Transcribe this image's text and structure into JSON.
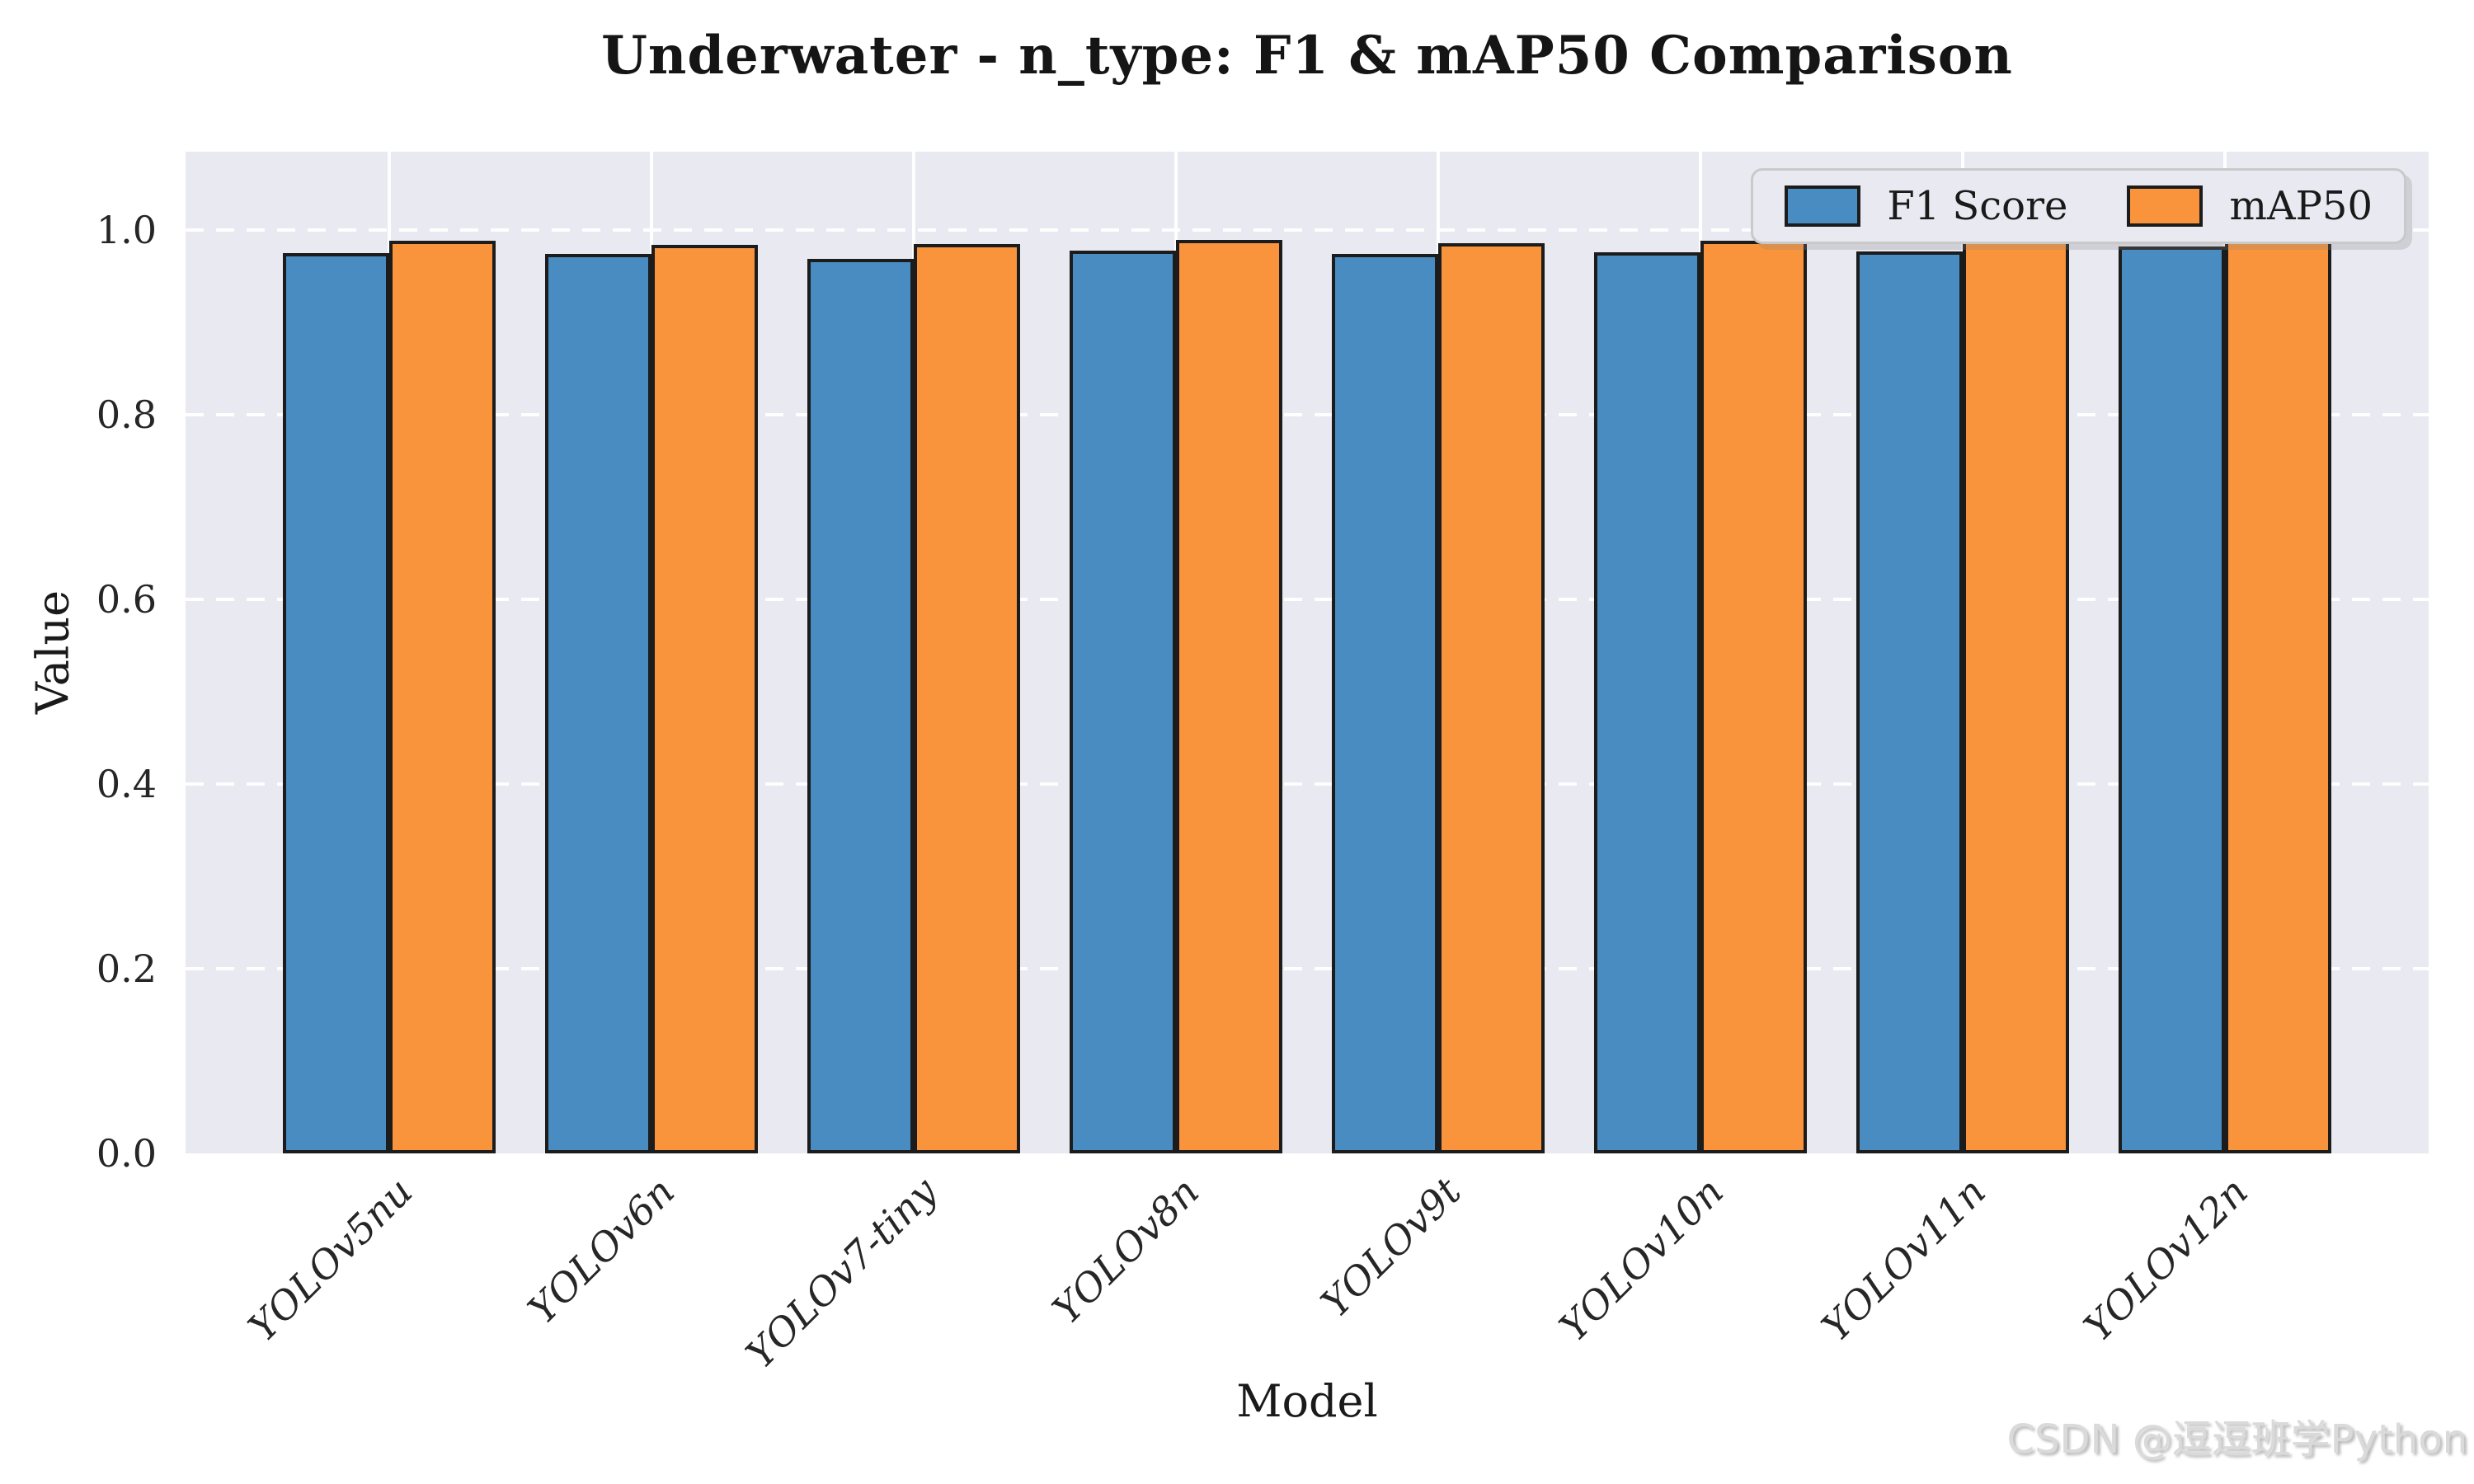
{
  "title": "Underwater - n_type: F1 & mAP50 Comparison",
  "watermark": "CSDN @逗逗班学Python",
  "colors": {
    "figure_background": "#ffffff",
    "plot_background": "#e9e9f1",
    "grid": "#ffffff",
    "bar_edge": "#1c1c1c",
    "f1_blue": "#488cc1",
    "map50_orange": "#f9943c"
  },
  "chart_data": {
    "type": "bar",
    "title": "Underwater - n_type: F1 & mAP50 Comparison",
    "xlabel": "Model",
    "ylabel": "Value",
    "categories": [
      "YOLOv5nu",
      "YOLOv6n",
      "YOLOv7-tiny",
      "YOLOv8n",
      "YOLOv9t",
      "YOLOv10n",
      "YOLOv11n",
      "YOLOv12n"
    ],
    "series": [
      {
        "name": "F1 Score",
        "color": "#488cc1",
        "values": [
          0.975,
          0.974,
          0.969,
          0.978,
          0.974,
          0.976,
          0.977,
          0.982
        ]
      },
      {
        "name": "mAP50",
        "color": "#f9943c",
        "values": [
          0.988,
          0.984,
          0.985,
          0.989,
          0.986,
          0.988,
          0.988,
          0.988
        ]
      }
    ],
    "ylim": [
      0,
      1.085
    ],
    "yticks": [
      0.0,
      0.2,
      0.4,
      0.6,
      0.8,
      1.0
    ],
    "grid": "white dashed horizontal, white solid vertical",
    "legend_position": "upper right"
  }
}
